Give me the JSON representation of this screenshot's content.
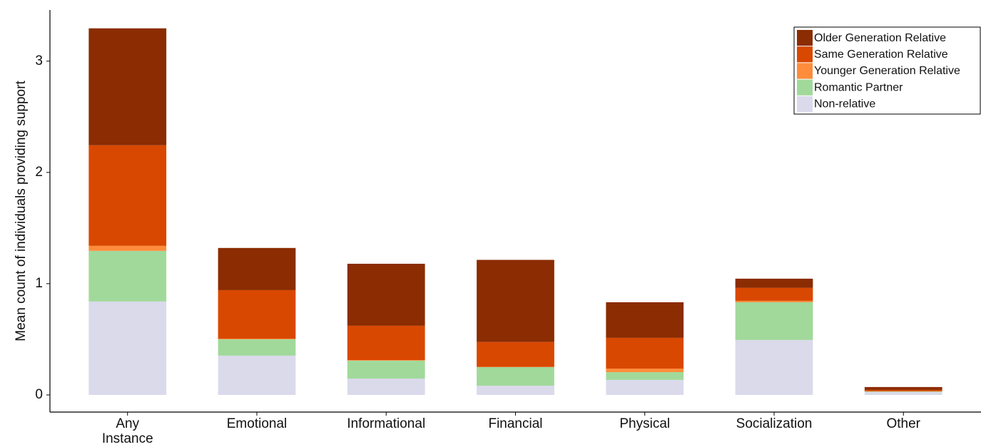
{
  "chart_data": {
    "type": "bar",
    "stacked": true,
    "ylabel": "Mean count of individuals providing support",
    "categories": [
      "Any\nInstance",
      "Emotional",
      "Informational",
      "Financial",
      "Physical",
      "Socialization",
      "Other"
    ],
    "series": [
      {
        "name": "Older Generation Relative",
        "color": "#8b2c02",
        "values": [
          1.051,
          0.379,
          0.557,
          0.738,
          0.32,
          0.083,
          0.026
        ]
      },
      {
        "name": "Same Generation Relative",
        "color": "#d94801",
        "values": [
          0.904,
          0.437,
          0.309,
          0.224,
          0.276,
          0.116,
          0.012
        ]
      },
      {
        "name": "Younger Generation Relative",
        "color": "#fd8d3c",
        "values": [
          0.045,
          0.005,
          0.005,
          0.002,
          0.032,
          0.013,
          0.002
        ]
      },
      {
        "name": "Romantic Partner",
        "color": "#a1d99b",
        "values": [
          0.455,
          0.147,
          0.161,
          0.167,
          0.07,
          0.339,
          0.005
        ]
      },
      {
        "name": "Non-relative",
        "color": "#dadaeb",
        "values": [
          0.84,
          0.353,
          0.147,
          0.083,
          0.135,
          0.494,
          0.026
        ]
      }
    ],
    "ylim": [
      -0.154,
      3.46
    ],
    "yticks": [
      0,
      1,
      2,
      3
    ],
    "grid": false,
    "legend": "top-right"
  }
}
